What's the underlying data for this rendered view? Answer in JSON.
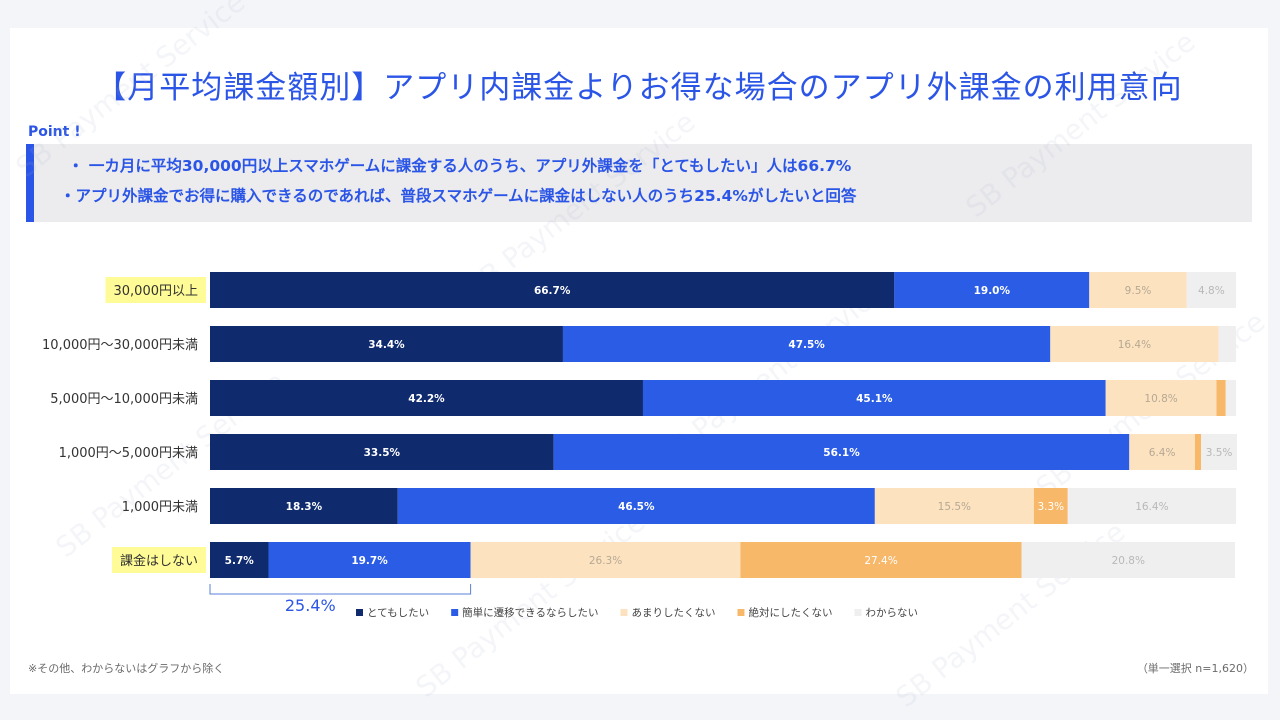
{
  "title": "【月平均課金額別】アプリ内課金よりお得な場合のアプリ外課金の利用意向",
  "point": {
    "label": "Point !",
    "line1": "・ 一カ月に平均30,000円以上スマホゲームに課金する人のうち、アプリ外課金を「とてもしたい」人は66.7%",
    "line2": "・アプリ外課金でお得に購入できるのであれば、普段スマホゲームに課金はしない人のうち25.4%がしたいと回答"
  },
  "watermark": "SB Payment Service",
  "notes": {
    "left": "※その他、わからないはグラフから除く",
    "right": "（単一選択 n=1,620）"
  },
  "bracket_label": "25.4%",
  "colors": {
    "very": "#102a6e",
    "easy": "#2b5ce6",
    "notmuch": "#fde2c0",
    "never": "#f8b86a",
    "unknown": "#efefef",
    "highlight": "#fffb96",
    "accent": "#2b55e6"
  },
  "chart_data": {
    "type": "bar",
    "orientation": "horizontal",
    "stacked": true,
    "categories": [
      "30,000円以上",
      "10,000円〜30,000円未満",
      "5,000円〜10,000円未満",
      "1,000円〜5,000円未満",
      "1,000円未満",
      "課金はしない"
    ],
    "highlighted_categories": [
      "30,000円以上",
      "課金はしない"
    ],
    "series": [
      {
        "name": "とてもしたい",
        "values": [
          66.7,
          34.4,
          42.2,
          33.5,
          18.3,
          5.7
        ],
        "color": "#102a6e"
      },
      {
        "name": "簡単に遷移できるならしたい",
        "values": [
          19.0,
          47.5,
          45.1,
          56.1,
          46.5,
          19.7
        ],
        "color": "#2b5ce6"
      },
      {
        "name": "あまりしたくない",
        "values": [
          9.5,
          16.4,
          10.8,
          6.4,
          15.5,
          26.3
        ],
        "color": "#fde2c0"
      },
      {
        "name": "絶対にしたくない",
        "values": [
          0,
          0,
          0.9,
          0.6,
          3.3,
          27.4
        ],
        "color": "#f8b86a"
      },
      {
        "name": "わからない",
        "values": [
          4.8,
          1.7,
          1.0,
          3.5,
          16.4,
          20.8
        ],
        "color": "#efefef"
      }
    ],
    "label_visibility": [
      [
        true,
        true,
        true,
        true
      ],
      [
        true,
        true,
        true,
        false
      ],
      [
        true,
        true,
        true,
        false
      ],
      [
        true,
        true,
        true,
        false
      ],
      [
        true,
        true,
        true,
        true
      ],
      [
        true,
        true,
        true,
        true
      ]
    ],
    "legend": [
      "とてもしたい",
      "簡単に遷移できるならしたい",
      "あまりしたくない",
      "絶対にしたくない",
      "わからない"
    ],
    "legend_position": "bottom",
    "xlim": [
      0,
      100
    ],
    "unit": "%"
  }
}
